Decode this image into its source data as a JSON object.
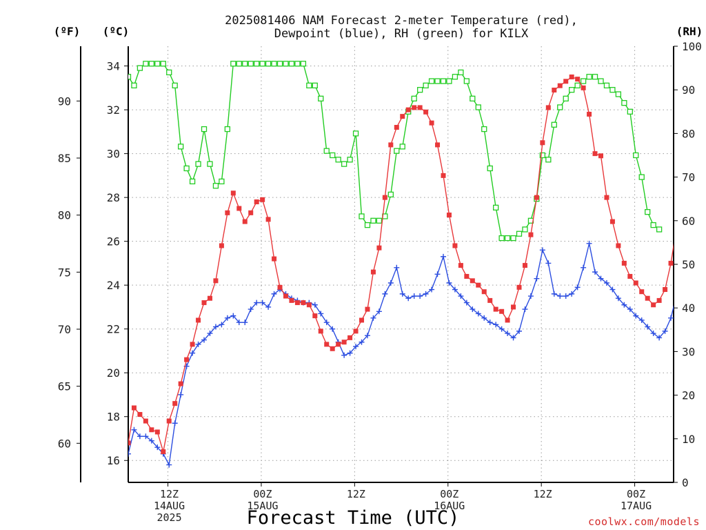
{
  "chart_data": {
    "type": "line",
    "title": [
      "2025081406 NAM Forecast 2-meter Temperature (red),",
      "Dewpoint (blue), RH (green) for KILX"
    ],
    "units": {
      "fahrenheit": "(ºF)",
      "celsius": "(ºC)",
      "rh": "(RH)"
    },
    "xlabel": "Forecast Time (UTC)",
    "credit": "coolwx.com/models",
    "x_hours_range": [
      -5.1,
      65
    ],
    "x_ticks": [
      {
        "hour": 0,
        "lines": [
          "12Z",
          "14AUG",
          "2025"
        ]
      },
      {
        "hour": 12,
        "lines": [
          "00Z",
          "15AUG"
        ]
      },
      {
        "hour": 24,
        "lines": [
          "12Z"
        ]
      },
      {
        "hour": 36,
        "lines": [
          "00Z",
          "16AUG"
        ]
      },
      {
        "hour": 48,
        "lines": [
          "12Z"
        ]
      },
      {
        "hour": 60,
        "lines": [
          "00Z",
          "17AUG"
        ]
      },
      {
        "hour": 72,
        "lines": [
          "12Z"
        ]
      }
    ],
    "celsius_axis": {
      "ticks": [
        16,
        18,
        20,
        22,
        24,
        26,
        28,
        30,
        32,
        34
      ],
      "range": [
        15.0,
        34.9
      ]
    },
    "fahrenheit_axis": {
      "ticks": [
        60,
        65,
        70,
        75,
        80,
        85,
        90
      ],
      "range": [
        57.6,
        94.8
      ]
    },
    "rh_axis": {
      "ticks": [
        0,
        10,
        20,
        30,
        40,
        50,
        60,
        70,
        80,
        90,
        100
      ],
      "range": [
        0,
        100
      ]
    },
    "grid": true,
    "series": [
      {
        "name": "Temperature",
        "color": "#e8383a",
        "marker": "filled-square",
        "axis": "celsius",
        "values": [
          16.8,
          18.4,
          18.1,
          17.8,
          17.4,
          17.3,
          16.4,
          17.8,
          18.6,
          19.5,
          20.6,
          21.3,
          22.4,
          23.2,
          23.4,
          24.2,
          25.8,
          27.3,
          28.2,
          27.5,
          26.9,
          27.3,
          27.8,
          27.9,
          27.0,
          25.2,
          23.9,
          23.5,
          23.3,
          23.2,
          23.2,
          23.1,
          22.6,
          21.9,
          21.3,
          21.1,
          21.3,
          21.4,
          21.6,
          21.9,
          22.4,
          22.9,
          24.6,
          25.7,
          28.0,
          30.4,
          31.2,
          31.7,
          32.0,
          32.1,
          32.1,
          31.9,
          31.4,
          30.4,
          29.0,
          27.2,
          25.8,
          24.9,
          24.4,
          24.2,
          24.0,
          23.7,
          23.3,
          22.9,
          22.8,
          22.4,
          23.0,
          23.9,
          24.9,
          26.3,
          28.0,
          30.5,
          32.1,
          32.9,
          33.1,
          33.3,
          33.5,
          33.4,
          33.0,
          31.8,
          30.0,
          29.9,
          28.0,
          26.9,
          25.8,
          25.0,
          24.4,
          24.1,
          23.7,
          23.4,
          23.1,
          23.3,
          23.8,
          25.0,
          26.7,
          28.8,
          30.2,
          31.8,
          32.8,
          33.3
        ]
      },
      {
        "name": "Dewpoint",
        "color": "#2b4de0",
        "marker": "plus",
        "axis": "celsius",
        "values": [
          16.3,
          17.4,
          17.1,
          17.1,
          16.9,
          16.6,
          16.3,
          15.8,
          17.7,
          19.0,
          20.3,
          20.9,
          21.3,
          21.5,
          21.8,
          22.1,
          22.2,
          22.5,
          22.6,
          22.3,
          22.3,
          22.9,
          23.2,
          23.2,
          23.0,
          23.6,
          23.8,
          23.6,
          23.4,
          23.3,
          23.2,
          23.2,
          23.1,
          22.7,
          22.3,
          22.0,
          21.4,
          20.8,
          20.9,
          21.2,
          21.4,
          21.7,
          22.5,
          22.8,
          23.6,
          24.1,
          24.8,
          23.6,
          23.4,
          23.5,
          23.5,
          23.6,
          23.8,
          24.5,
          25.3,
          24.1,
          23.8,
          23.5,
          23.2,
          22.9,
          22.7,
          22.5,
          22.3,
          22.2,
          22.0,
          21.8,
          21.6,
          21.9,
          22.9,
          23.5,
          24.3,
          25.6,
          25.0,
          23.6,
          23.5,
          23.5,
          23.6,
          23.9,
          24.8,
          25.9,
          24.6,
          24.3,
          24.1,
          23.8,
          23.4,
          23.1,
          22.9,
          22.6,
          22.4,
          22.1,
          21.8,
          21.6,
          21.9,
          22.5,
          23.6,
          24.1,
          24.6,
          24.4,
          23.8,
          23.4
        ]
      },
      {
        "name": "RH",
        "color": "#22cc22",
        "marker": "open-square",
        "axis": "rh",
        "values": [
          93,
          91,
          95,
          96,
          96,
          96,
          96,
          94,
          91,
          77,
          72,
          69,
          73,
          81,
          73,
          68,
          69,
          81,
          96,
          96,
          96,
          96,
          96,
          96,
          96,
          96,
          96,
          96,
          96,
          96,
          96,
          91,
          91,
          88,
          76,
          75,
          74,
          73,
          74,
          80,
          61,
          59,
          60,
          60,
          61,
          66,
          76,
          77,
          85,
          88,
          90,
          91,
          92,
          92,
          92,
          92,
          93,
          94,
          92,
          88,
          86,
          81,
          72,
          63,
          56,
          56,
          56,
          57,
          58,
          60,
          65,
          75,
          74,
          82,
          86,
          88,
          90,
          91,
          92,
          93,
          93,
          92,
          91,
          90,
          89,
          87,
          85,
          75,
          70,
          62,
          59,
          58
        ]
      }
    ]
  }
}
